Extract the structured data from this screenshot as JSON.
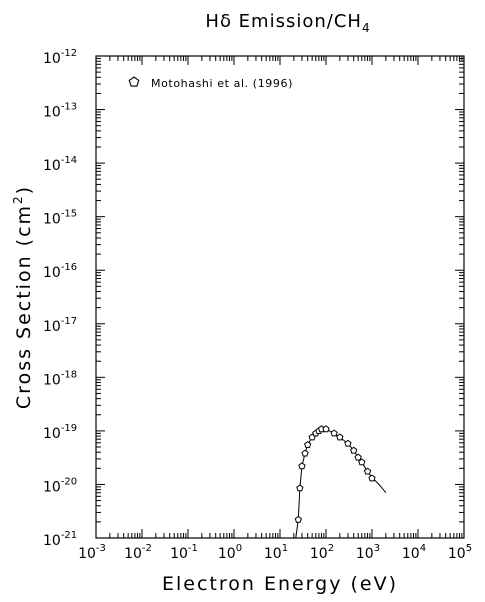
{
  "chart_data": {
    "type": "scatter",
    "title_main": "Hδ Emission/CH",
    "title_sub": "4",
    "xlabel": "Electron Energy (eV)",
    "ylabel_main": "Cross Section (cm",
    "ylabel_sup": "2",
    "ylabel_end": ")",
    "x_scale": "log",
    "y_scale": "log",
    "xlim": [
      0.001,
      100000
    ],
    "ylim": [
      1e-21,
      1e-12
    ],
    "x_tick_exponents": [
      "-3",
      "-2",
      "-1",
      "0",
      "1",
      "2",
      "3",
      "4",
      "5"
    ],
    "y_tick_exponents": [
      "-21",
      "-20",
      "-19",
      "-18",
      "-17",
      "-16",
      "-15",
      "-14",
      "-13",
      "-12"
    ],
    "tick_base": "10",
    "legend": {
      "label": "Motohashi et al. (1996)",
      "marker": "pentagon",
      "position": "top-left"
    },
    "series": [
      {
        "name": "Motohashi et al. (1996)",
        "kind": "markers",
        "marker": "pentagon",
        "x": [
          25,
          27,
          30,
          35,
          40,
          50,
          60,
          70,
          80,
          100,
          150,
          200,
          300,
          400,
          500,
          600,
          800,
          1000
        ],
        "y": [
          2.2e-21,
          8.5e-21,
          2.2e-20,
          3.8e-20,
          5.5e-20,
          7.6e-20,
          9e-20,
          1e-19,
          1.08e-19,
          1.08e-19,
          9e-20,
          7.6e-20,
          5.8e-20,
          4.3e-20,
          3.2e-20,
          2.6e-20,
          1.75e-20,
          1.3e-20
        ]
      },
      {
        "name": "",
        "kind": "line",
        "x": [
          22,
          25,
          27,
          30,
          35,
          40,
          50,
          60,
          70,
          80,
          100,
          150,
          200,
          300,
          400,
          500,
          600,
          800,
          1000,
          1500,
          2000
        ],
        "y": [
          1e-21,
          2.2e-21,
          8.5e-21,
          2.2e-20,
          3.8e-20,
          5.5e-20,
          7.6e-20,
          9e-20,
          1e-19,
          1.08e-19,
          1.08e-19,
          9e-20,
          7.6e-20,
          5.8e-20,
          4.3e-20,
          3.2e-20,
          2.6e-20,
          1.75e-20,
          1.35e-20,
          9.5e-21,
          7e-21
        ]
      }
    ]
  }
}
